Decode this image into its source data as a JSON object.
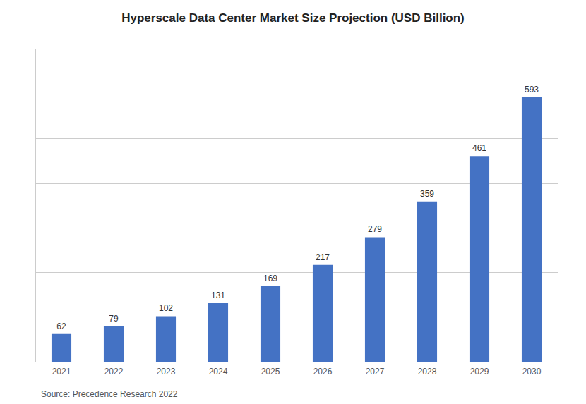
{
  "chart_data": {
    "type": "bar",
    "title": "Hyperscale Data Center Market Size Projection (USD Billion)",
    "categories": [
      "2021",
      "2022",
      "2023",
      "2024",
      "2025",
      "2026",
      "2027",
      "2028",
      "2029",
      "2030"
    ],
    "values": [
      62,
      79,
      102,
      131,
      169,
      217,
      279,
      359,
      461,
      593
    ],
    "color": "#4472C4",
    "ylim": [
      0,
      700
    ],
    "yticks": [
      0,
      100,
      200,
      300,
      400,
      500,
      600
    ],
    "grid": true,
    "data_labels": true,
    "tick_labels": "x",
    "annotations": [
      "Source: Precedence Research 2022"
    ]
  }
}
